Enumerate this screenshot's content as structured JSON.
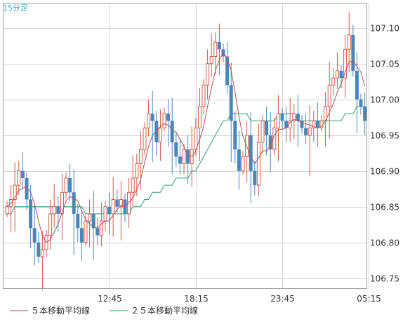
{
  "chart_data": {
    "type": "candlestick",
    "title": "15分足",
    "y_axis": {
      "ylim": [
        106.735,
        107.135
      ],
      "ticks": [
        "106.75",
        "106.80",
        "106.85",
        "106.90",
        "106.95",
        "107.00",
        "107.05",
        "107.10"
      ],
      "tick_values": [
        106.75,
        106.8,
        106.85,
        106.9,
        106.95,
        107.0,
        107.05,
        107.1
      ]
    },
    "x_axis": {
      "ticks": [
        "12:45",
        "18:15",
        "23:45",
        "05:15"
      ],
      "tick_index": [
        26,
        48,
        70,
        92
      ]
    },
    "grid": true,
    "legend_position": "bottom-left",
    "colors": {
      "up": "#cd5c4c",
      "down": "#4a86b8",
      "ma5": "#b0505a",
      "ma25": "#2ea36e",
      "title": "#3bb0d8",
      "grid": "#d3d3d3"
    },
    "series": [
      {
        "name": "５本移動平均線"
      },
      {
        "name": "２５本移動平均線"
      }
    ],
    "close": [
      106.85,
      106.86,
      106.88,
      106.9,
      106.89,
      106.86,
      106.82,
      106.8,
      106.78,
      106.79,
      106.81,
      106.84,
      106.85,
      106.84,
      106.87,
      106.89,
      106.87,
      106.84,
      106.82,
      106.8,
      106.83,
      106.84,
      106.82,
      106.81,
      106.83,
      106.85,
      106.84,
      106.86,
      106.85,
      106.86,
      106.84,
      106.87,
      106.89,
      106.91,
      106.93,
      106.96,
      106.98,
      106.97,
      106.94,
      106.96,
      106.98,
      106.97,
      106.94,
      106.92,
      106.91,
      106.93,
      106.91,
      106.93,
      106.96,
      106.99,
      107.02,
      107.05,
      107.06,
      107.08,
      107.07,
      107.06,
      107.02,
      106.97,
      106.93,
      106.9,
      106.92,
      106.95,
      106.9,
      106.88,
      106.94,
      106.97,
      106.95,
      106.93,
      106.96,
      106.98,
      106.97,
      106.96,
      106.97,
      106.98,
      106.97,
      106.96,
      106.95,
      106.96,
      106.97,
      106.96,
      106.97,
      106.99,
      107.02,
      107.03,
      107.04,
      107.03,
      107.07,
      107.09,
      107.04,
      107.0,
      106.99,
      106.97
    ],
    "ma25": [
      106.84,
      106.84,
      106.85,
      106.85,
      106.85,
      106.85,
      106.85,
      106.85,
      106.85,
      106.85,
      106.85,
      106.85,
      106.85,
      106.85,
      106.85,
      106.85,
      106.85,
      106.85,
      106.85,
      106.85,
      106.84,
      106.84,
      106.84,
      106.84,
      106.84,
      106.84,
      106.84,
      106.84,
      106.84,
      106.84,
      106.84,
      106.84,
      106.85,
      106.85,
      106.85,
      106.86,
      106.86,
      106.87,
      106.87,
      106.87,
      106.88,
      106.88,
      106.88,
      106.89,
      106.89,
      106.89,
      106.89,
      106.9,
      106.9,
      106.91,
      106.92,
      106.93,
      106.94,
      106.95,
      106.96,
      106.97,
      106.97,
      106.98,
      106.98,
      106.98,
      106.98,
      106.98,
      106.97,
      106.97,
      106.97,
      106.97,
      106.97,
      106.97,
      106.97,
      106.98,
      106.98,
      106.98,
      106.98,
      106.98,
      106.97,
      106.97,
      106.97,
      106.97,
      106.97,
      106.97,
      106.97,
      106.97,
      106.97,
      106.97,
      106.97,
      106.97,
      106.98,
      106.98,
      106.98,
      106.99,
      106.99,
      106.99
    ]
  }
}
